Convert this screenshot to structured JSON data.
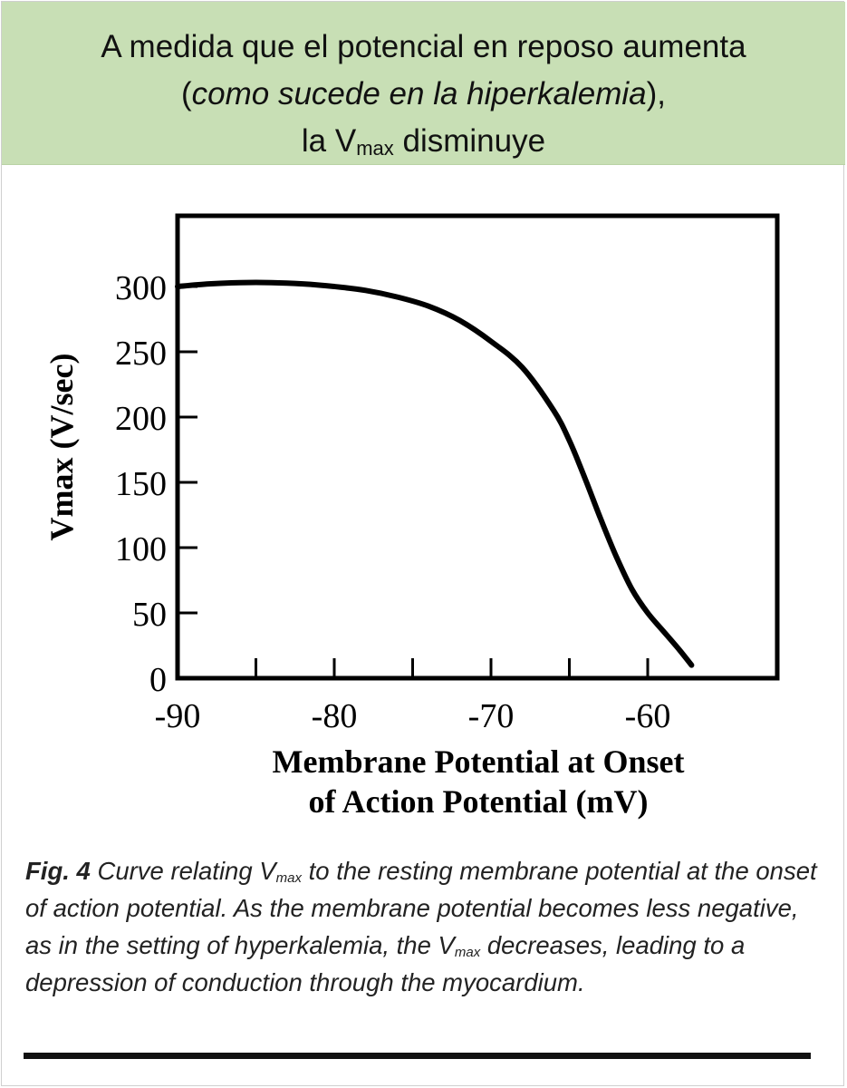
{
  "banner": {
    "line1": "A medida que el potencial en reposo aumenta",
    "line2_open": "(",
    "line2_italic": "como sucede en la hiperkalemia",
    "line2_close": "),",
    "line3_pre": "la V",
    "line3_sub": "max",
    "line3_post": " disminuye",
    "background": "#c8dfb5"
  },
  "chart_data": {
    "type": "line",
    "xlabel_line1": "Membrane Potential at Onset",
    "xlabel_line2": "of Action Potential (mV)",
    "ylabel": "Vmax (V/sec)",
    "xlim": [
      -90,
      -51
    ],
    "ylim": [
      0,
      350
    ],
    "x_ticks": [
      -90,
      -80,
      -70,
      -60
    ],
    "x_tick_labels": [
      "-90",
      "-80",
      "-70",
      "-60"
    ],
    "x_minor_ticks": [
      -85,
      -75,
      -65
    ],
    "y_ticks": [
      0,
      50,
      100,
      150,
      200,
      250,
      300
    ],
    "y_tick_labels": [
      "0",
      "50",
      "100",
      "150",
      "200",
      "250",
      "300"
    ],
    "grid": false,
    "series": [
      {
        "x": [
          -90,
          -88,
          -86,
          -84,
          -82,
          -80,
          -78,
          -76,
          -74,
          -72,
          -70,
          -68,
          -66,
          -65,
          -64,
          -63,
          -62,
          -61,
          -60,
          -59,
          -58,
          -57.2
        ],
        "y": [
          300,
          302,
          303,
          303,
          302,
          300,
          297,
          292,
          285,
          274,
          258,
          238,
          205,
          182,
          153,
          122,
          93,
          68,
          50,
          36,
          22,
          10
        ],
        "color": "#000000"
      }
    ]
  },
  "caption": {
    "fig_label": "Fig. 4",
    "text_a": "  Curve relating V",
    "sub_a": "max",
    "text_b": " to the resting membrane potential at the onset of action potential. As the membrane potential becomes less negative, as in the setting of hyperkalemia, the V",
    "sub_b": "max",
    "text_c": " decreases, leading to a depression of conduction through the myocardium."
  }
}
